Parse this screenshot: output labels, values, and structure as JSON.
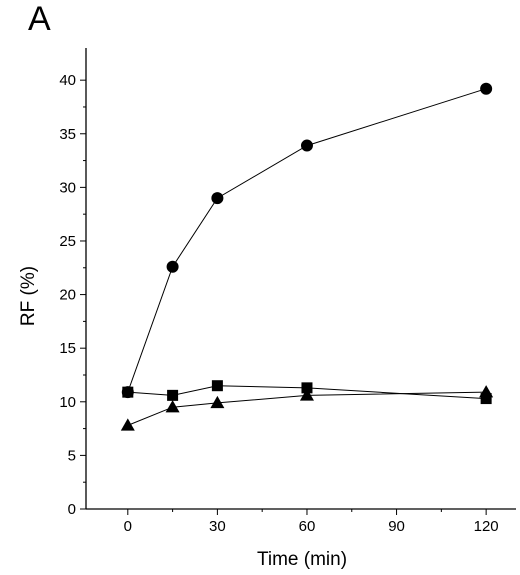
{
  "chart_data": {
    "type": "line",
    "panel_label": "A",
    "title": "",
    "xlabel": "Time (min)",
    "ylabel": "RF (%)",
    "xlim": [
      -14,
      130
    ],
    "ylim": [
      0,
      43
    ],
    "xticks": [
      0,
      30,
      60,
      90,
      120
    ],
    "yticks": [
      0,
      5,
      10,
      15,
      20,
      25,
      30,
      35,
      40
    ],
    "x_minor_step": 15,
    "y_minor_step": 2.5,
    "grid": false,
    "legend": "none",
    "line_color": "#000000",
    "series": [
      {
        "marker": "circle",
        "x": [
          0,
          15,
          30,
          60,
          120
        ],
        "y": [
          10.9,
          22.6,
          29.0,
          33.9,
          39.2
        ]
      },
      {
        "marker": "square",
        "x": [
          0,
          15,
          30,
          60,
          120
        ],
        "y": [
          10.9,
          10.6,
          11.5,
          11.3,
          10.3
        ]
      },
      {
        "marker": "triangle",
        "x": [
          0,
          15,
          30,
          60,
          120
        ],
        "y": [
          7.8,
          9.5,
          9.9,
          10.6,
          10.9
        ]
      }
    ]
  }
}
